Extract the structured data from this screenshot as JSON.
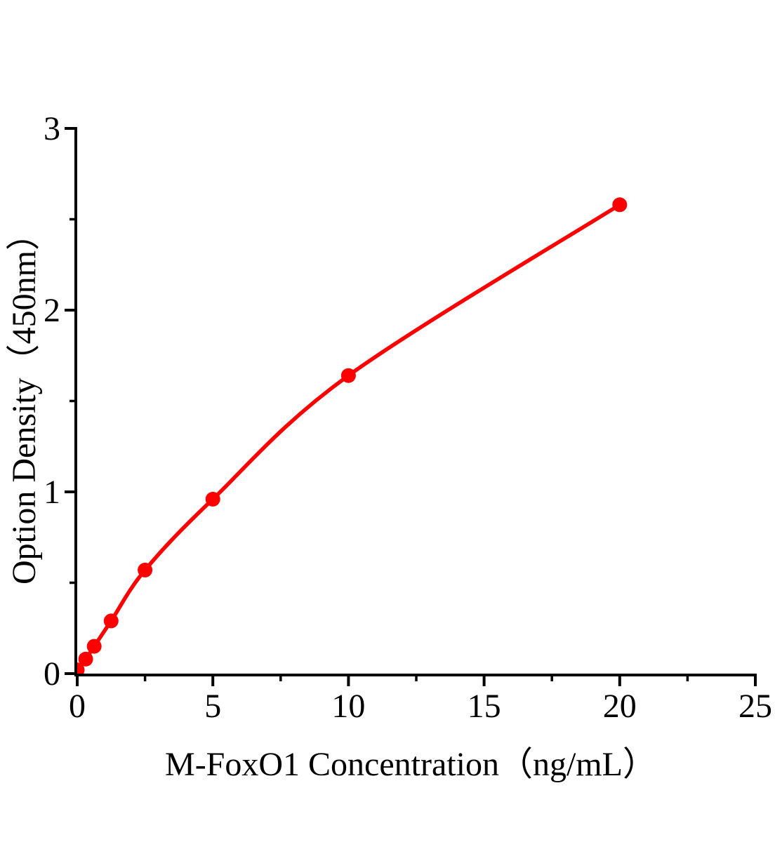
{
  "page": {
    "background_color": "#ffffff"
  },
  "chart_data": {
    "type": "line",
    "title": "",
    "xlabel": "M-FoxO1 Concentration（ng/mL）",
    "ylabel": "Option Density（450nm）",
    "xlim": [
      0,
      25
    ],
    "ylim": [
      0,
      3
    ],
    "x_major_ticks": [
      0,
      5,
      10,
      15,
      20,
      25
    ],
    "x_major_tick_labels": [
      "0",
      "5",
      "10",
      "15",
      "20",
      "25"
    ],
    "x_minor_ticks": [
      2.5,
      7.5,
      12.5,
      17.5,
      22.5
    ],
    "y_major_ticks": [
      0,
      1,
      2,
      3
    ],
    "y_major_tick_labels": [
      "0",
      "1",
      "2",
      "3"
    ],
    "y_minor_ticks": [
      0.5,
      1.5,
      2.5
    ],
    "grid": false,
    "legend": false,
    "axis_color": "#000000",
    "text_color": "#000000",
    "series": [
      {
        "name": "M-FoxO1 standard curve",
        "color": "#ff0000",
        "marker": "circle",
        "smooth": true,
        "x": [
          0,
          0.312,
          0.625,
          1.25,
          2.5,
          5,
          10,
          20
        ],
        "y": [
          0.02,
          0.08,
          0.15,
          0.29,
          0.57,
          0.96,
          1.64,
          2.58
        ]
      }
    ]
  }
}
